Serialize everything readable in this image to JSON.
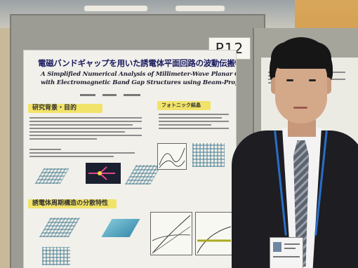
{
  "poster_board": {
    "number_tag": "P12"
  },
  "poster": {
    "title_jp": "電磁バンドギャップを用いた誘電体平面回路の波動伝搬特性",
    "title_en_line1": "A Simplified Numerical Analysis of Millimeter-Wave Planar Circuits",
    "title_en_line2": "with Electromagnetic Band Gap Structures using Beam-Propagation Method",
    "section_1": "研究背景・目的",
    "section_2": "フォトニック結晶",
    "section_3": "誘電体周期構造の分散特性"
  },
  "colors": {
    "section_highlight": "#f1e36a",
    "title_text": "#1a1a60",
    "lanyard": "#2a6ec8",
    "wall_accent": "#c88a3a"
  }
}
